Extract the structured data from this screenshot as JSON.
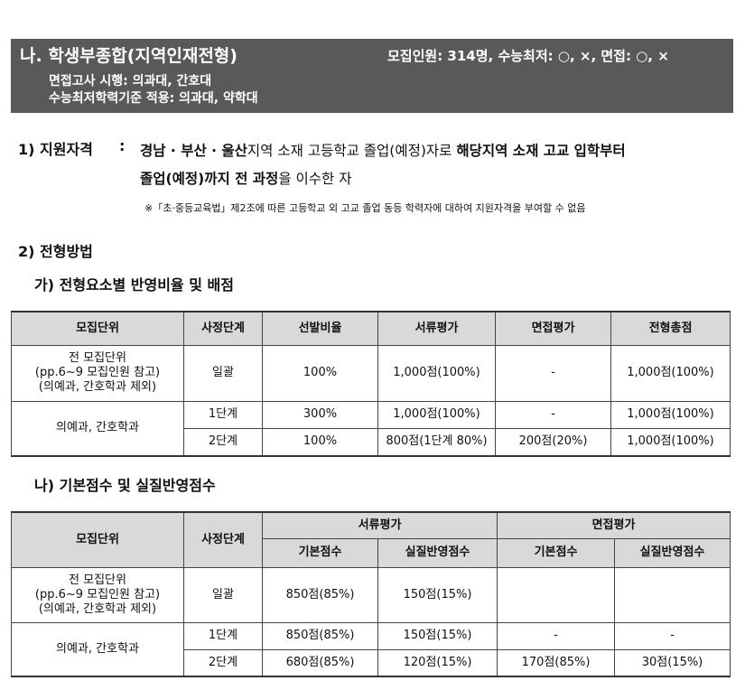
{
  "header": {
    "title": "나. 학생부종합(지역인재전형)",
    "summary": "모집인원: 314명, 수능최저: ○, ×, 면접: ○, ×",
    "lines": [
      "면접고사 시행: 의과대, 간호대",
      "수능최저학력기준 적용: 의과대, 약학대"
    ]
  },
  "section1": {
    "label": "1) 지원자격",
    "separator": ":",
    "lines": [
      [
        {
          "text": "경남 · 부산 · 울산",
          "bold": true
        },
        {
          "text": "지역 소재 고등학교 졸업(예정)자로 ",
          "bold": false
        },
        {
          "text": "해당지역 소재 고교 입학부터",
          "bold": true
        }
      ],
      [
        {
          "text": "졸업(예정)까지 전 과정",
          "bold": true
        },
        {
          "text": "을 이수한 자",
          "bold": false
        }
      ]
    ],
    "note": "※「초·중등교육법」제2조에 따른 고등학교 외 고교 졸업 동등 학력자에 대하여 지원자격을 부여할 수 없음"
  },
  "section2": {
    "label": "2) 전형방법",
    "table1": {
      "title": "가) 전형요소별 반영비율 및 배점",
      "headers": [
        "모집단위",
        "사정단계",
        "선발비율",
        "서류평가",
        "면접평가",
        "전형총점"
      ],
      "rows": [
        [
          "전 모집단위\n(pp.6~9 모집인원 참고)\n(의예과, 간호학과 제외)",
          "일괄",
          "100%",
          "1,000점(100%)",
          "-",
          "1,000점(100%)"
        ],
        [
          "의예과, 간호학과",
          "1단계",
          "300%",
          "1,000점(100%)",
          "-",
          "1,000점(100%)"
        ],
        [
          "2단계",
          "100%",
          "800점(1단계 80%)",
          "200점(20%)",
          "1,000점(100%)"
        ]
      ]
    },
    "table2": {
      "title": "나) 기본점수 및 실질반영점수",
      "headers": [
        "모집단위",
        "사정단계",
        "서류평가",
        "면접평가"
      ],
      "subheaders": [
        "기본점수",
        "실질반영점수",
        "기본점수",
        "실질반영점수"
      ],
      "rows": [
        [
          "전 모집단위\n(pp.6~9 모집인원 참고)\n(의예과, 간호학과 제외)",
          "일괄",
          "850점(85%)",
          "150점(15%)"
        ],
        [
          "의예과, 간호학과",
          "1단계",
          "850점(85%)",
          "150점(15%)",
          "-",
          "-"
        ],
        [
          "2단계",
          "680점(85%)",
          "120점(15%)",
          "170점(85%)",
          "30점(15%)"
        ]
      ]
    }
  }
}
